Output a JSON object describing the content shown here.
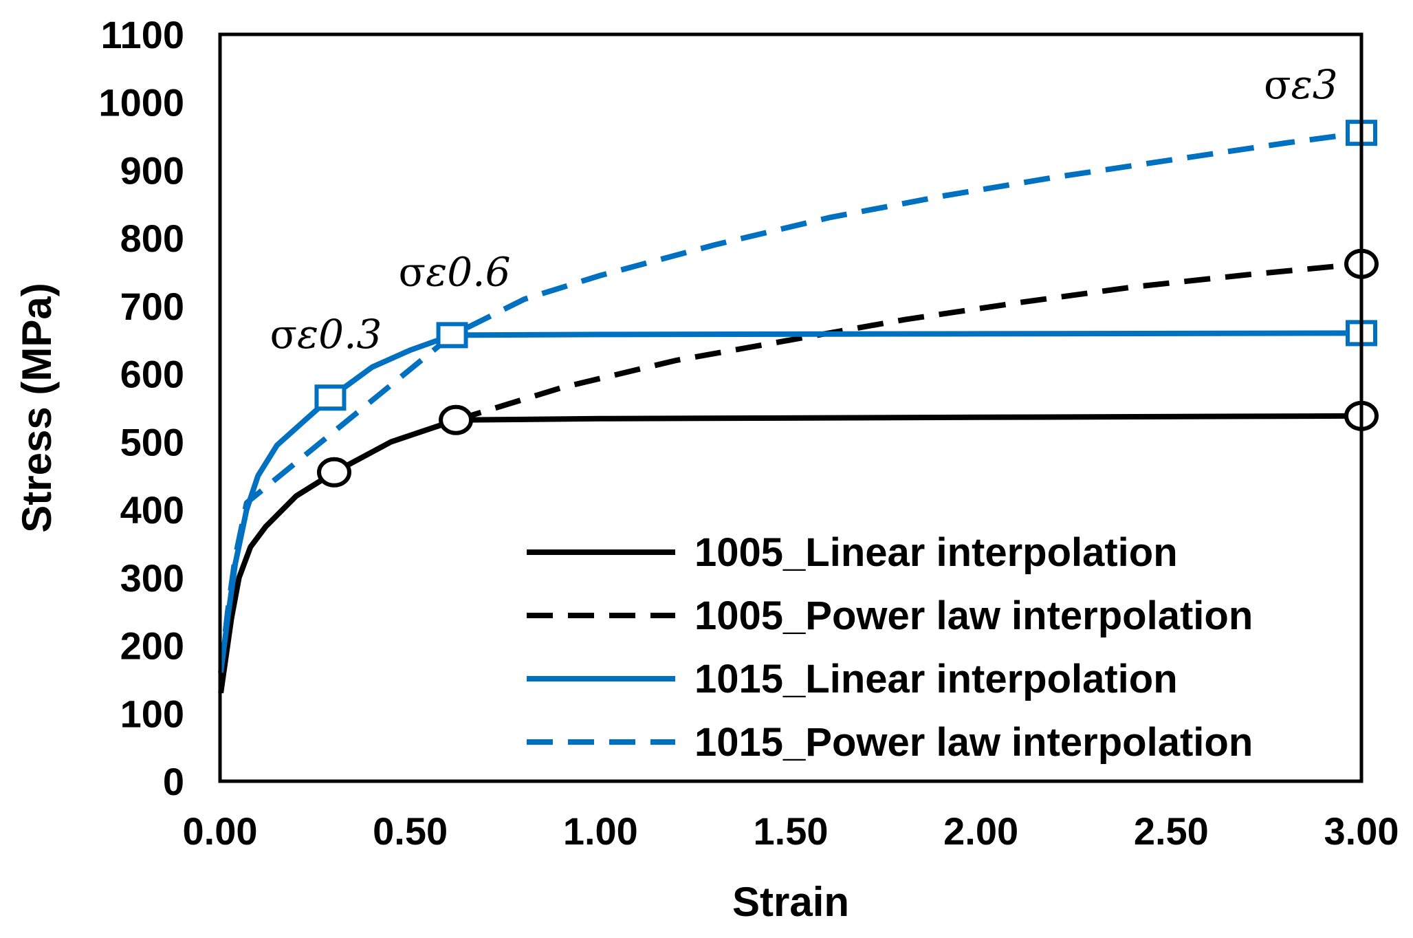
{
  "chart_data": {
    "type": "line",
    "title": "",
    "xlabel": "Strain",
    "ylabel": "Stress (MPa)",
    "xlim": [
      0,
      3
    ],
    "ylim": [
      0,
      1100
    ],
    "xticks": [
      0,
      0.5,
      1,
      1.5,
      2,
      2.5,
      3
    ],
    "xtick_labels": [
      "0.00",
      "0.50",
      "1.00",
      "1.50",
      "2.00",
      "2.50",
      "3.00"
    ],
    "yticks": [
      0,
      100,
      200,
      300,
      400,
      500,
      600,
      700,
      800,
      900,
      1000,
      1100
    ],
    "ytick_labels": [
      "0",
      "100",
      "200",
      "300",
      "400",
      "500",
      "600",
      "700",
      "800",
      "900",
      "1000",
      "1100"
    ],
    "grid": false,
    "legend_position": "bottom-right",
    "series": [
      {
        "name": "1005_Linear interpolation",
        "color": "#000000",
        "dashed": false,
        "points": [
          [
            0.002,
            130
          ],
          [
            0.03,
            240
          ],
          [
            0.05,
            300
          ],
          [
            0.08,
            345
          ],
          [
            0.12,
            375
          ],
          [
            0.2,
            420
          ],
          [
            0.3,
            455
          ],
          [
            0.45,
            500
          ],
          [
            0.62,
            532
          ],
          [
            1.0,
            534
          ],
          [
            2.0,
            536
          ],
          [
            3.0,
            538
          ]
        ],
        "markers": [
          [
            0.3,
            455
          ],
          [
            0.62,
            532
          ],
          [
            3.0,
            538
          ]
        ],
        "marker": "circle"
      },
      {
        "name": "1005_Power law interpolation",
        "color": "#000000",
        "dashed": true,
        "points": [
          [
            0.62,
            532
          ],
          [
            0.9,
            580
          ],
          [
            1.2,
            620
          ],
          [
            1.5,
            650
          ],
          [
            1.8,
            680
          ],
          [
            2.1,
            705
          ],
          [
            2.4,
            728
          ],
          [
            2.7,
            746
          ],
          [
            3.0,
            762
          ]
        ],
        "markers": [
          [
            3.0,
            762
          ]
        ],
        "marker": "circle"
      },
      {
        "name": "1015_Linear interpolation",
        "color": "#0070C0",
        "dashed": false,
        "points": [
          [
            0.002,
            160
          ],
          [
            0.02,
            240
          ],
          [
            0.04,
            320
          ],
          [
            0.07,
            400
          ],
          [
            0.1,
            450
          ],
          [
            0.15,
            495
          ],
          [
            0.22,
            530
          ],
          [
            0.29,
            565
          ],
          [
            0.4,
            610
          ],
          [
            0.5,
            635
          ],
          [
            0.61,
            657
          ],
          [
            1.0,
            658
          ],
          [
            2.0,
            659
          ],
          [
            3.0,
            660
          ]
        ],
        "markers": [
          [
            0.29,
            565
          ],
          [
            0.61,
            657
          ],
          [
            3.0,
            660
          ]
        ],
        "marker": "square"
      },
      {
        "name": "1015_Power law interpolation",
        "color": "#0070C0",
        "dashed": true,
        "points": [
          [
            0.002,
            160
          ],
          [
            0.02,
            250
          ],
          [
            0.04,
            330
          ],
          [
            0.07,
            410
          ],
          [
            0.61,
            657
          ],
          [
            0.8,
            710
          ],
          [
            1.0,
            745
          ],
          [
            1.3,
            790
          ],
          [
            1.6,
            830
          ],
          [
            1.9,
            862
          ],
          [
            2.2,
            890
          ],
          [
            2.5,
            915
          ],
          [
            2.8,
            940
          ],
          [
            3.0,
            955
          ]
        ],
        "markers": [
          [
            3.0,
            955
          ]
        ],
        "marker": "square"
      }
    ],
    "annotations": [
      {
        "prefix": "σ",
        "subscript": "ε0.3",
        "near": [
          0.29,
          565
        ]
      },
      {
        "prefix": "σ",
        "subscript": "ε0.6",
        "near": [
          0.61,
          657
        ]
      },
      {
        "prefix": "σ",
        "subscript": "ε3",
        "near": [
          3.0,
          955
        ]
      }
    ]
  }
}
